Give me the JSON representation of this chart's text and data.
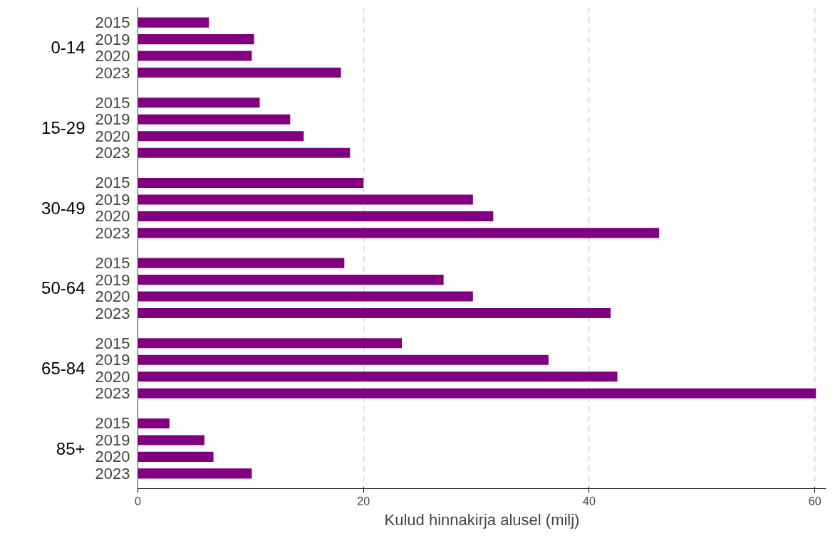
{
  "chart_data": {
    "type": "bar",
    "orientation": "horizontal",
    "xlabel": "Kulud hinnakirja alusel (milj)",
    "categories": [
      "2015",
      "2019",
      "2020",
      "2023",
      "2015",
      "2019",
      "2020",
      "2023",
      "2015",
      "2019",
      "2020",
      "2023",
      "2015",
      "2019",
      "2020",
      "2023",
      "2015",
      "2019",
      "2020",
      "2023",
      "2015",
      "2019",
      "2020",
      "2023"
    ],
    "values": [
      6.3,
      10.3,
      10.1,
      18.0,
      10.8,
      13.5,
      14.7,
      18.8,
      20.0,
      29.7,
      31.5,
      46.2,
      18.3,
      27.1,
      29.7,
      41.9,
      23.4,
      36.4,
      42.5,
      60.1,
      2.8,
      5.9,
      6.7,
      10.1
    ],
    "color": "#800080",
    "annotations": [
      "0-14",
      "15-29",
      "30-49",
      "50-64",
      "65-84",
      "85+"
    ],
    "xlim": [
      0,
      61
    ],
    "xticks": [
      0,
      20,
      40,
      60
    ],
    "grid": "x"
  }
}
